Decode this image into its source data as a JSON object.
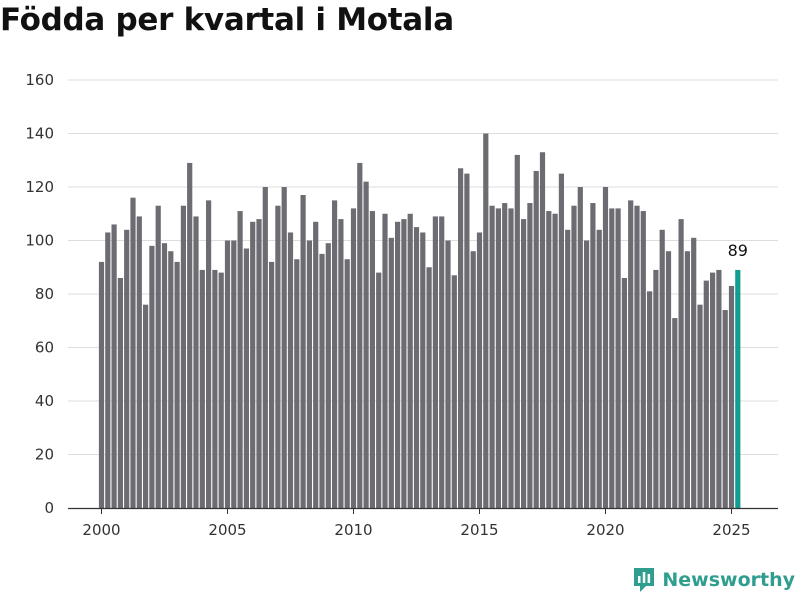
{
  "title": "Födda per kvartal i Motala",
  "brand": {
    "name": "Newsworthy",
    "color": "#2f9e8f"
  },
  "colors": {
    "bar": "#6d6c73",
    "highlight": "#139d92",
    "grid": "#dddddd",
    "axis": "#333333"
  },
  "chart_data": {
    "type": "bar",
    "title": "Födda per kvartal i Motala",
    "xlabel": "",
    "ylabel": "",
    "ylim": [
      0,
      160
    ],
    "yticks": [
      0,
      20,
      40,
      60,
      80,
      100,
      120,
      140,
      160
    ],
    "xtick_labels": [
      "2000",
      "2005",
      "2010",
      "2015",
      "2020",
      "2025"
    ],
    "grid": "horizontal",
    "start": "2000 Q1",
    "values": [
      92,
      103,
      106,
      86,
      104,
      116,
      109,
      76,
      98,
      113,
      99,
      96,
      92,
      113,
      129,
      109,
      89,
      115,
      89,
      88,
      100,
      100,
      111,
      97,
      107,
      108,
      120,
      92,
      113,
      120,
      103,
      93,
      117,
      100,
      107,
      95,
      99,
      115,
      108,
      93,
      112,
      129,
      122,
      111,
      88,
      110,
      101,
      107,
      108,
      110,
      105,
      103,
      90,
      109,
      109,
      100,
      87,
      127,
      125,
      96,
      103,
      140,
      113,
      112,
      114,
      112,
      132,
      108,
      114,
      126,
      133,
      111,
      110,
      125,
      104,
      113,
      120,
      100,
      114,
      104,
      120,
      112,
      112,
      86,
      115,
      113,
      111,
      81,
      89,
      104,
      96,
      71,
      108,
      96,
      101,
      76,
      85,
      88,
      89,
      74,
      83,
      89
    ],
    "highlight_last": true,
    "annotations": [
      {
        "text": "89",
        "target": "last"
      }
    ]
  }
}
